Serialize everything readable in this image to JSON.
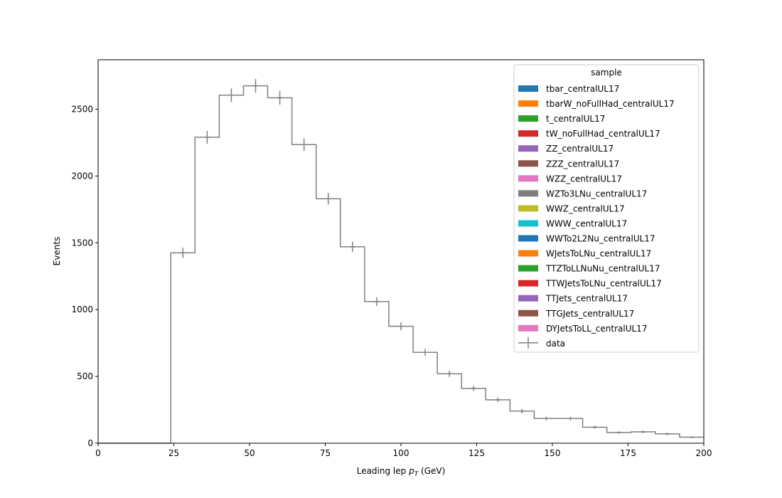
{
  "chart_data": {
    "type": "histogram",
    "xlabel_main": "Leading lep ",
    "xlabel_var": "p",
    "xlabel_sub": "T",
    "xlabel_unit": " (GeV)",
    "ylabel": "Events",
    "xlim": [
      0,
      200
    ],
    "ylim": [
      0,
      2870
    ],
    "xticks": [
      0,
      25,
      50,
      75,
      100,
      125,
      150,
      175,
      200
    ],
    "yticks": [
      0,
      500,
      1000,
      1500,
      2000,
      2500
    ],
    "bin_edges": [
      0,
      8,
      16,
      24,
      32,
      40,
      48,
      56,
      64,
      72,
      80,
      88,
      96,
      104,
      112,
      120,
      128,
      136,
      144,
      152,
      160,
      168,
      176,
      184,
      192,
      200
    ],
    "data": {
      "name": "data",
      "color": "#808080",
      "values": [
        0,
        0,
        0,
        1425,
        2290,
        2605,
        2675,
        2585,
        2235,
        1830,
        1470,
        1060,
        875,
        680,
        520,
        410,
        325,
        240,
        185,
        185,
        120,
        80,
        85,
        70,
        45
      ],
      "errors": [
        0,
        0,
        0,
        38,
        48,
        51,
        52,
        51,
        47,
        43,
        38,
        33,
        30,
        26,
        23,
        20,
        18,
        16,
        14,
        14,
        11,
        9,
        9,
        8,
        7
      ]
    },
    "legend": {
      "title": "sample",
      "position": "top-right",
      "entries": [
        {
          "name": "tbar_centralUL17",
          "color": "#1f77b4"
        },
        {
          "name": "tbarW_noFullHad_centralUL17",
          "color": "#ff7f0e"
        },
        {
          "name": "t_centralUL17",
          "color": "#2ca02c"
        },
        {
          "name": "tW_noFullHad_centralUL17",
          "color": "#d62728"
        },
        {
          "name": "ZZ_centralUL17",
          "color": "#9467bd"
        },
        {
          "name": "ZZZ_centralUL17",
          "color": "#8c564b"
        },
        {
          "name": "WZZ_centralUL17",
          "color": "#e377c2"
        },
        {
          "name": "WZTo3LNu_centralUL17",
          "color": "#7f7f7f"
        },
        {
          "name": "WWZ_centralUL17",
          "color": "#bcbd22"
        },
        {
          "name": "WWW_centralUL17",
          "color": "#17becf"
        },
        {
          "name": "WWTo2L2Nu_centralUL17",
          "color": "#1f77b4"
        },
        {
          "name": "WJetsToLNu_centralUL17",
          "color": "#ff7f0e"
        },
        {
          "name": "TTZToLLNuNu_centralUL17",
          "color": "#2ca02c"
        },
        {
          "name": "TTWJetsToLNu_centralUL17",
          "color": "#d62728"
        },
        {
          "name": "TTJets_centralUL17",
          "color": "#9467bd"
        },
        {
          "name": "TTGJets_centralUL17",
          "color": "#8c564b"
        },
        {
          "name": "DYJetsToLL_centralUL17",
          "color": "#e377c2"
        }
      ]
    }
  }
}
